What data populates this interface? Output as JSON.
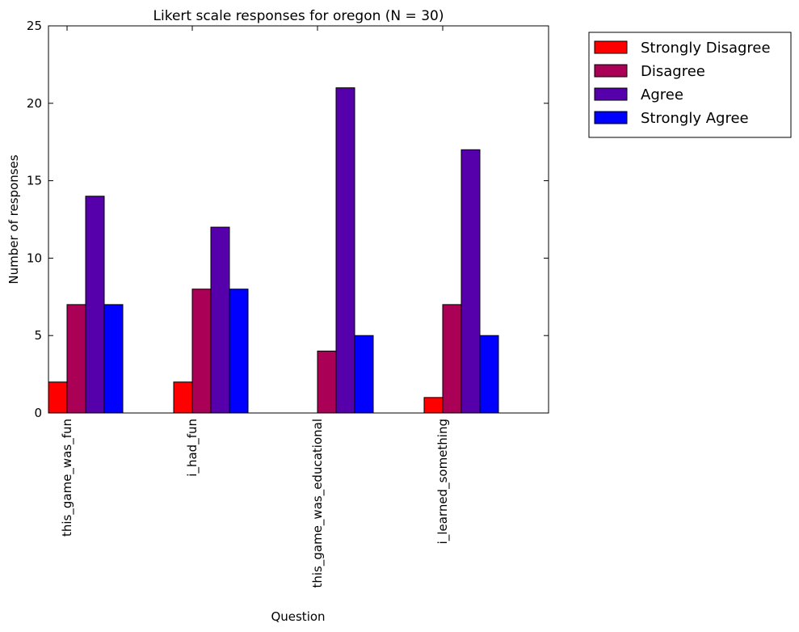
{
  "chart_data": {
    "type": "bar",
    "title": "Likert scale responses for oregon (N = 30)",
    "xlabel": "Question",
    "ylabel": "Number of responses",
    "ylim": [
      0,
      25
    ],
    "yticks": [
      "0",
      "5",
      "10",
      "15",
      "20",
      "25"
    ],
    "categories": [
      "this_game_was_fun",
      "i_had_fun",
      "this_game_was_educational",
      "i_learned_something"
    ],
    "series": [
      {
        "name": "Strongly Disagree",
        "color": "#ff0000",
        "values": [
          2,
          2,
          0,
          1
        ]
      },
      {
        "name": "Disagree",
        "color": "#aa0055",
        "values": [
          7,
          8,
          4,
          7
        ]
      },
      {
        "name": "Agree",
        "color": "#5500aa",
        "values": [
          14,
          12,
          21,
          17
        ]
      },
      {
        "name": "Strongly Agree",
        "color": "#0000ff",
        "values": [
          7,
          8,
          5,
          5
        ]
      }
    ],
    "grid": false,
    "legend_position": "outside-top-right"
  }
}
